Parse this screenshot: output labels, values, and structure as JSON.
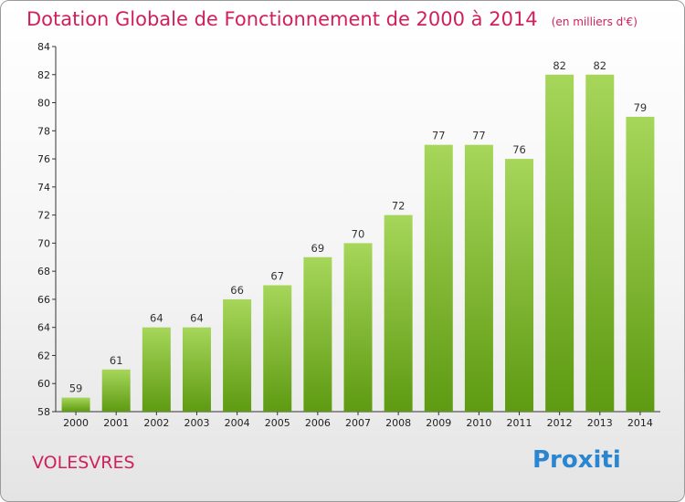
{
  "title": "Dotation Globale de Fonctionnement de 2000 à 2014",
  "subtitle": "(en milliers d'€)",
  "place": "VOLESVRES",
  "logo": "Proxiti",
  "chart_data": {
    "type": "bar",
    "title": "Dotation Globale de Fonctionnement de 2000 à 2014",
    "subtitle": "(en milliers d'€)",
    "categories": [
      "2000",
      "2001",
      "2002",
      "2003",
      "2004",
      "2005",
      "2006",
      "2007",
      "2008",
      "2009",
      "2010",
      "2011",
      "2012",
      "2013",
      "2014"
    ],
    "values": [
      59,
      61,
      64,
      64,
      66,
      67,
      69,
      70,
      72,
      77,
      77,
      76,
      82,
      82,
      79
    ],
    "ylim": [
      58,
      84
    ],
    "yticks": [
      58,
      60,
      62,
      64,
      66,
      68,
      70,
      72,
      74,
      76,
      78,
      80,
      82,
      84
    ],
    "grid": false,
    "data_labels": true,
    "bar_color_light": "#a6d65a",
    "bar_color_dark": "#5e9a12"
  }
}
